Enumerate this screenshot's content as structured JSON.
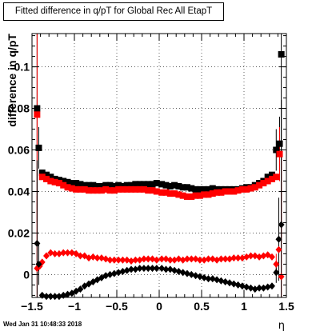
{
  "chart_data": {
    "type": "scatter",
    "title": "Fitted difference in q/pT for Global Rec All EtapT",
    "xlabel": "η",
    "ylabel": "difference in q/pT",
    "xlim": [
      -1.5,
      1.5
    ],
    "ylim": [
      -0.011,
      0.116
    ],
    "x_ticks": [
      -1.5,
      -1,
      -0.5,
      0,
      0.5,
      1,
      1.5
    ],
    "x_tick_labels": [
      "−1.5",
      "−1",
      "−0.5",
      "0",
      "0.5",
      "1",
      "1.5"
    ],
    "y_ticks": [
      0,
      0.02,
      0.04,
      0.06,
      0.08,
      0.1
    ],
    "y_tick_labels": [
      "0",
      "0.02",
      "0.04",
      "0.06",
      "0.08",
      "0.1"
    ],
    "grid": true,
    "series": [
      {
        "marker": "square",
        "color": "#000000",
        "points": [
          [
            -1.44,
            0.08,
            0.055
          ],
          [
            -1.42,
            0.061,
            0.01
          ],
          [
            -1.38,
            0.049,
            0
          ],
          [
            -1.33,
            0.048,
            0
          ],
          [
            -1.28,
            0.047,
            0
          ],
          [
            -1.23,
            0.046,
            0
          ],
          [
            -1.18,
            0.0455,
            0
          ],
          [
            -1.13,
            0.045,
            0
          ],
          [
            -1.08,
            0.0445,
            0
          ],
          [
            -1.03,
            0.044,
            0
          ],
          [
            -0.98,
            0.044,
            0
          ],
          [
            -0.93,
            0.0435,
            0
          ],
          [
            -0.88,
            0.043,
            0
          ],
          [
            -0.83,
            0.043,
            0
          ],
          [
            -0.78,
            0.043,
            0
          ],
          [
            -0.73,
            0.0425,
            0
          ],
          [
            -0.68,
            0.0425,
            0
          ],
          [
            -0.63,
            0.043,
            0
          ],
          [
            -0.58,
            0.043,
            0
          ],
          [
            -0.53,
            0.0425,
            0
          ],
          [
            -0.48,
            0.043,
            0
          ],
          [
            -0.43,
            0.0425,
            0
          ],
          [
            -0.38,
            0.043,
            0
          ],
          [
            -0.33,
            0.043,
            0
          ],
          [
            -0.28,
            0.0435,
            0
          ],
          [
            -0.23,
            0.0435,
            0
          ],
          [
            -0.18,
            0.0435,
            0
          ],
          [
            -0.13,
            0.0435,
            0
          ],
          [
            -0.08,
            0.0435,
            0
          ],
          [
            -0.03,
            0.044,
            0
          ],
          [
            0.03,
            0.0435,
            0
          ],
          [
            0.08,
            0.043,
            0
          ],
          [
            0.13,
            0.0425,
            0
          ],
          [
            0.18,
            0.043,
            0
          ],
          [
            0.23,
            0.0425,
            0
          ],
          [
            0.28,
            0.042,
            0
          ],
          [
            0.33,
            0.042,
            0
          ],
          [
            0.38,
            0.0415,
            0
          ],
          [
            0.43,
            0.041,
            0
          ],
          [
            0.48,
            0.041,
            0
          ],
          [
            0.53,
            0.041,
            0
          ],
          [
            0.58,
            0.041,
            0
          ],
          [
            0.63,
            0.0415,
            0
          ],
          [
            0.68,
            0.041,
            0
          ],
          [
            0.73,
            0.041,
            0
          ],
          [
            0.78,
            0.041,
            0
          ],
          [
            0.83,
            0.041,
            0
          ],
          [
            0.88,
            0.041,
            0
          ],
          [
            0.93,
            0.041,
            0
          ],
          [
            0.98,
            0.0415,
            0
          ],
          [
            1.03,
            0.042,
            0
          ],
          [
            1.08,
            0.042,
            0
          ],
          [
            1.13,
            0.043,
            0
          ],
          [
            1.18,
            0.044,
            0
          ],
          [
            1.23,
            0.045,
            0
          ],
          [
            1.28,
            0.047,
            0
          ],
          [
            1.33,
            0.048,
            0
          ],
          [
            1.38,
            0.06,
            0.01
          ],
          [
            1.42,
            0.063,
            0.013
          ],
          [
            1.44,
            0.106,
            0.09
          ]
        ]
      },
      {
        "marker": "square",
        "color": "#ff0000",
        "points": [
          [
            -1.44,
            0.077,
            0.07
          ],
          [
            -1.38,
            0.047,
            0
          ],
          [
            -1.33,
            0.046,
            0
          ],
          [
            -1.28,
            0.045,
            0
          ],
          [
            -1.23,
            0.0445,
            0
          ],
          [
            -1.18,
            0.044,
            0
          ],
          [
            -1.13,
            0.043,
            0
          ],
          [
            -1.08,
            0.042,
            0
          ],
          [
            -1.03,
            0.0415,
            0
          ],
          [
            -0.98,
            0.041,
            0
          ],
          [
            -0.93,
            0.041,
            0
          ],
          [
            -0.88,
            0.041,
            0
          ],
          [
            -0.83,
            0.0405,
            0
          ],
          [
            -0.78,
            0.0405,
            0
          ],
          [
            -0.73,
            0.0405,
            0
          ],
          [
            -0.68,
            0.0405,
            0
          ],
          [
            -0.63,
            0.041,
            0
          ],
          [
            -0.58,
            0.0405,
            0
          ],
          [
            -0.53,
            0.0405,
            0
          ],
          [
            -0.48,
            0.041,
            0
          ],
          [
            -0.43,
            0.041,
            0
          ],
          [
            -0.38,
            0.041,
            0
          ],
          [
            -0.33,
            0.041,
            0
          ],
          [
            -0.28,
            0.041,
            0
          ],
          [
            -0.23,
            0.041,
            0
          ],
          [
            -0.18,
            0.041,
            0
          ],
          [
            -0.13,
            0.0405,
            0
          ],
          [
            -0.08,
            0.0405,
            0
          ],
          [
            -0.03,
            0.04,
            0
          ],
          [
            0.03,
            0.0395,
            0
          ],
          [
            0.08,
            0.0395,
            0
          ],
          [
            0.13,
            0.039,
            0
          ],
          [
            0.18,
            0.039,
            0
          ],
          [
            0.23,
            0.0385,
            0
          ],
          [
            0.28,
            0.038,
            0
          ],
          [
            0.33,
            0.0375,
            0
          ],
          [
            0.38,
            0.0375,
            0
          ],
          [
            0.43,
            0.038,
            0
          ],
          [
            0.48,
            0.038,
            0
          ],
          [
            0.53,
            0.0385,
            0
          ],
          [
            0.58,
            0.0385,
            0
          ],
          [
            0.63,
            0.039,
            0
          ],
          [
            0.68,
            0.0395,
            0
          ],
          [
            0.73,
            0.0395,
            0
          ],
          [
            0.78,
            0.04,
            0
          ],
          [
            0.83,
            0.04,
            0
          ],
          [
            0.88,
            0.04,
            0
          ],
          [
            0.93,
            0.0405,
            0
          ],
          [
            0.98,
            0.041,
            0
          ],
          [
            1.03,
            0.041,
            0
          ],
          [
            1.08,
            0.0415,
            0
          ],
          [
            1.13,
            0.042,
            0
          ],
          [
            1.18,
            0.043,
            0
          ],
          [
            1.23,
            0.044,
            0
          ],
          [
            1.28,
            0.045,
            0
          ],
          [
            1.33,
            0.046,
            0
          ],
          [
            1.38,
            0.047,
            0
          ],
          [
            1.42,
            0.058,
            0.013
          ]
        ]
      },
      {
        "marker": "diamond",
        "color": "#ff0000",
        "points": [
          [
            -1.44,
            0.003,
            0.035
          ],
          [
            -1.41,
            0.004,
            0
          ],
          [
            -1.38,
            0.006,
            0
          ],
          [
            -1.33,
            0.009,
            0
          ],
          [
            -1.28,
            0.0105,
            0
          ],
          [
            -1.23,
            0.01,
            0
          ],
          [
            -1.18,
            0.01,
            0
          ],
          [
            -1.13,
            0.0105,
            0
          ],
          [
            -1.08,
            0.0105,
            0
          ],
          [
            -1.03,
            0.0105,
            0
          ],
          [
            -0.98,
            0.01,
            0
          ],
          [
            -0.93,
            0.009,
            0
          ],
          [
            -0.88,
            0.009,
            0
          ],
          [
            -0.83,
            0.008,
            0
          ],
          [
            -0.78,
            0.0085,
            0
          ],
          [
            -0.73,
            0.008,
            0
          ],
          [
            -0.68,
            0.008,
            0
          ],
          [
            -0.63,
            0.0075,
            0
          ],
          [
            -0.58,
            0.007,
            0
          ],
          [
            -0.53,
            0.007,
            0
          ],
          [
            -0.48,
            0.007,
            0
          ],
          [
            -0.43,
            0.007,
            0
          ],
          [
            -0.38,
            0.007,
            0
          ],
          [
            -0.33,
            0.0065,
            0
          ],
          [
            -0.28,
            0.007,
            0
          ],
          [
            -0.23,
            0.007,
            0
          ],
          [
            -0.18,
            0.0075,
            0
          ],
          [
            -0.13,
            0.0075,
            0
          ],
          [
            -0.08,
            0.0075,
            0
          ],
          [
            -0.03,
            0.007,
            0
          ],
          [
            0.03,
            0.0075,
            0
          ],
          [
            0.08,
            0.0075,
            0
          ],
          [
            0.13,
            0.007,
            0
          ],
          [
            0.18,
            0.007,
            0
          ],
          [
            0.23,
            0.0075,
            0
          ],
          [
            0.28,
            0.007,
            0
          ],
          [
            0.33,
            0.0075,
            0
          ],
          [
            0.38,
            0.0075,
            0
          ],
          [
            0.43,
            0.0075,
            0
          ],
          [
            0.48,
            0.007,
            0
          ],
          [
            0.53,
            0.007,
            0
          ],
          [
            0.58,
            0.0075,
            0
          ],
          [
            0.63,
            0.0075,
            0
          ],
          [
            0.68,
            0.007,
            0
          ],
          [
            0.73,
            0.0075,
            0
          ],
          [
            0.78,
            0.0075,
            0
          ],
          [
            0.83,
            0.0075,
            0
          ],
          [
            0.88,
            0.008,
            0
          ],
          [
            0.93,
            0.008,
            0
          ],
          [
            0.98,
            0.008,
            0
          ],
          [
            1.03,
            0.0085,
            0
          ],
          [
            1.08,
            0.009,
            0
          ],
          [
            1.13,
            0.009,
            0
          ],
          [
            1.18,
            0.0085,
            0
          ],
          [
            1.23,
            0.009,
            0
          ],
          [
            1.28,
            0.0095,
            0
          ],
          [
            1.33,
            0.0085,
            0
          ],
          [
            1.38,
            0.005,
            0.005
          ],
          [
            1.41,
            0.012,
            0
          ],
          [
            1.44,
            -0.001,
            0.06
          ]
        ]
      },
      {
        "marker": "diamond",
        "color": "#000000",
        "points": [
          [
            -1.44,
            0.015,
            0.04
          ],
          [
            -1.42,
            0.005,
            0.01
          ],
          [
            -1.38,
            -0.01,
            0
          ],
          [
            -1.33,
            -0.0105,
            0
          ],
          [
            -1.28,
            -0.0105,
            0
          ],
          [
            -1.23,
            -0.0105,
            0
          ],
          [
            -1.18,
            -0.0105,
            0
          ],
          [
            -1.13,
            -0.01,
            0
          ],
          [
            -1.08,
            -0.0095,
            0
          ],
          [
            -1.03,
            -0.009,
            0
          ],
          [
            -0.98,
            -0.008,
            0
          ],
          [
            -0.93,
            -0.007,
            0
          ],
          [
            -0.88,
            -0.0055,
            0
          ],
          [
            -0.83,
            -0.0045,
            0
          ],
          [
            -0.78,
            -0.0035,
            0
          ],
          [
            -0.73,
            -0.0025,
            0
          ],
          [
            -0.68,
            -0.0015,
            0
          ],
          [
            -0.63,
            -0.0005,
            0
          ],
          [
            -0.58,
            0.0,
            0
          ],
          [
            -0.53,
            0.0005,
            0
          ],
          [
            -0.48,
            0.001,
            0
          ],
          [
            -0.43,
            0.0015,
            0
          ],
          [
            -0.38,
            0.002,
            0
          ],
          [
            -0.33,
            0.0025,
            0
          ],
          [
            -0.28,
            0.0025,
            0
          ],
          [
            -0.23,
            0.003,
            0
          ],
          [
            -0.18,
            0.003,
            0
          ],
          [
            -0.13,
            0.003,
            0
          ],
          [
            -0.08,
            0.003,
            0
          ],
          [
            -0.03,
            0.003,
            0
          ],
          [
            0.03,
            0.003,
            0
          ],
          [
            0.08,
            0.0025,
            0
          ],
          [
            0.13,
            0.0025,
            0
          ],
          [
            0.18,
            0.002,
            0
          ],
          [
            0.23,
            0.0015,
            0
          ],
          [
            0.28,
            0.001,
            0
          ],
          [
            0.33,
            0.0005,
            0
          ],
          [
            0.38,
            0.0,
            0
          ],
          [
            0.43,
            -0.0005,
            0
          ],
          [
            0.48,
            -0.001,
            0
          ],
          [
            0.53,
            -0.0015,
            0
          ],
          [
            0.58,
            -0.002,
            0
          ],
          [
            0.63,
            -0.002,
            0
          ],
          [
            0.68,
            -0.0025,
            0
          ],
          [
            0.73,
            -0.003,
            0
          ],
          [
            0.78,
            -0.0035,
            0
          ],
          [
            0.83,
            -0.004,
            0
          ],
          [
            0.88,
            -0.0045,
            0
          ],
          [
            0.93,
            -0.005,
            0
          ],
          [
            0.98,
            -0.0055,
            0
          ],
          [
            1.03,
            -0.006,
            0
          ],
          [
            1.08,
            -0.0065,
            0
          ],
          [
            1.13,
            -0.007,
            0
          ],
          [
            1.18,
            -0.0065,
            0
          ],
          [
            1.23,
            -0.0065,
            0
          ],
          [
            1.28,
            -0.006,
            0
          ],
          [
            1.33,
            -0.0055,
            0
          ],
          [
            1.38,
            0.001,
            0.005
          ],
          [
            1.41,
            0.017,
            0.02
          ],
          [
            1.44,
            0.024,
            0.06
          ]
        ]
      }
    ]
  },
  "footer": {
    "timestamp": "Wed Jan 31 10:48:33 2018"
  }
}
